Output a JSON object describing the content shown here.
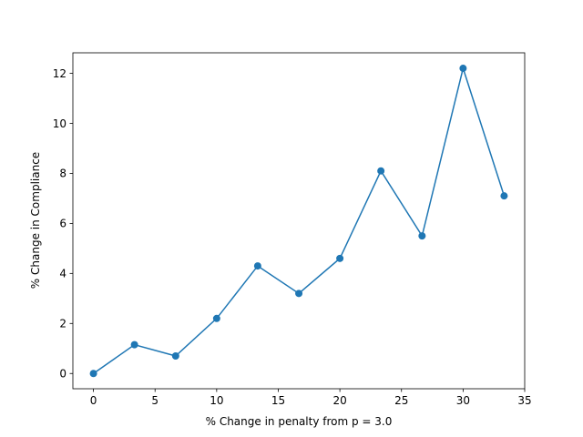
{
  "chart_data": {
    "type": "line",
    "title": "",
    "xlabel": "% Change in penalty from p = 3.0",
    "ylabel": "% Change in Compliance",
    "xlim": [
      -1.67,
      35
    ],
    "ylim": [
      -0.61,
      12.82
    ],
    "xticks": [
      0,
      5,
      10,
      15,
      20,
      25,
      30,
      35
    ],
    "yticks": [
      0,
      2,
      4,
      6,
      8,
      10,
      12
    ],
    "grid": false,
    "series": [
      {
        "color": "#1f77b4",
        "marker": "circle",
        "x": [
          0,
          3.33,
          6.67,
          10,
          13.33,
          16.67,
          20,
          23.33,
          26.67,
          30,
          33.33
        ],
        "y": [
          0,
          1.15,
          0.7,
          2.2,
          4.3,
          3.2,
          4.6,
          8.1,
          5.5,
          12.2,
          7.1
        ]
      }
    ]
  }
}
